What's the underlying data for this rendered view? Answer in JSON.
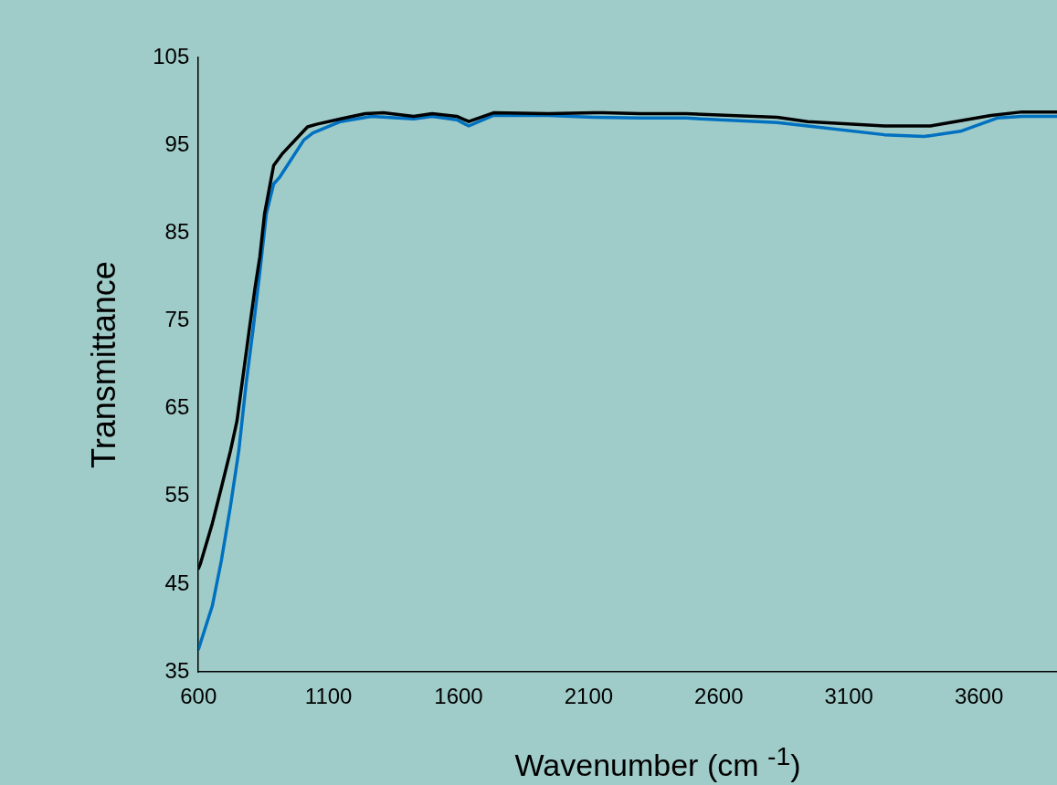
{
  "chart_data": {
    "type": "line",
    "xlabel": "Wavenumber (cm $^{-1}$)",
    "ylabel": "Transmittance",
    "xlim": [
      600,
      3900
    ],
    "xticks": [
      600,
      1100,
      1600,
      2100,
      2600,
      3100,
      3600
    ],
    "ylim": [
      35,
      105
    ],
    "yticks": [
      35,
      45,
      55,
      65,
      75,
      85,
      95,
      105
    ],
    "grid": false,
    "legend": false,
    "marker": "none",
    "line_style": "solid",
    "series": [
      {
        "color": "#000000",
        "x": [
          600,
          607,
          653,
          688,
          723,
          748,
          773,
          794,
          818,
          836,
          854,
          889,
          924,
          1019,
          1054,
          1146,
          1241,
          1311,
          1427,
          1498,
          1593,
          1639,
          1734,
          1945,
          2121,
          2156,
          2297,
          2473,
          2825,
          2941,
          3237,
          3413,
          3646,
          3765,
          3900
        ],
        "values": [
          46.8,
          47.3,
          51.9,
          56.0,
          60.2,
          63.6,
          69.1,
          73.7,
          78.9,
          82.3,
          87.2,
          92.7,
          94.1,
          97.1,
          97.4,
          98.0,
          98.6,
          98.7,
          98.3,
          98.6,
          98.3,
          97.7,
          98.7,
          98.6,
          98.7,
          98.7,
          98.6,
          98.6,
          98.2,
          97.7,
          97.2,
          97.2,
          98.4,
          98.8,
          98.8
        ]
      },
      {
        "color": "#0070c0",
        "x": [
          600,
          653,
          688,
          723,
          755,
          783,
          811,
          836,
          861,
          889,
          913,
          1005,
          1040,
          1146,
          1265,
          1427,
          1498,
          1593,
          1639,
          1734,
          1945,
          2121,
          2297,
          2473,
          2825,
          2941,
          3237,
          3389,
          3529,
          3670,
          3765,
          3900
        ],
        "values": [
          37.6,
          42.5,
          47.7,
          53.9,
          60.2,
          67.8,
          74.3,
          80.6,
          87.2,
          90.6,
          91.4,
          95.6,
          96.4,
          97.7,
          98.3,
          98.0,
          98.3,
          97.9,
          97.2,
          98.4,
          98.4,
          98.2,
          98.1,
          98.1,
          97.6,
          97.2,
          96.2,
          96.0,
          96.6,
          98.1,
          98.3,
          98.3
        ]
      }
    ]
  }
}
